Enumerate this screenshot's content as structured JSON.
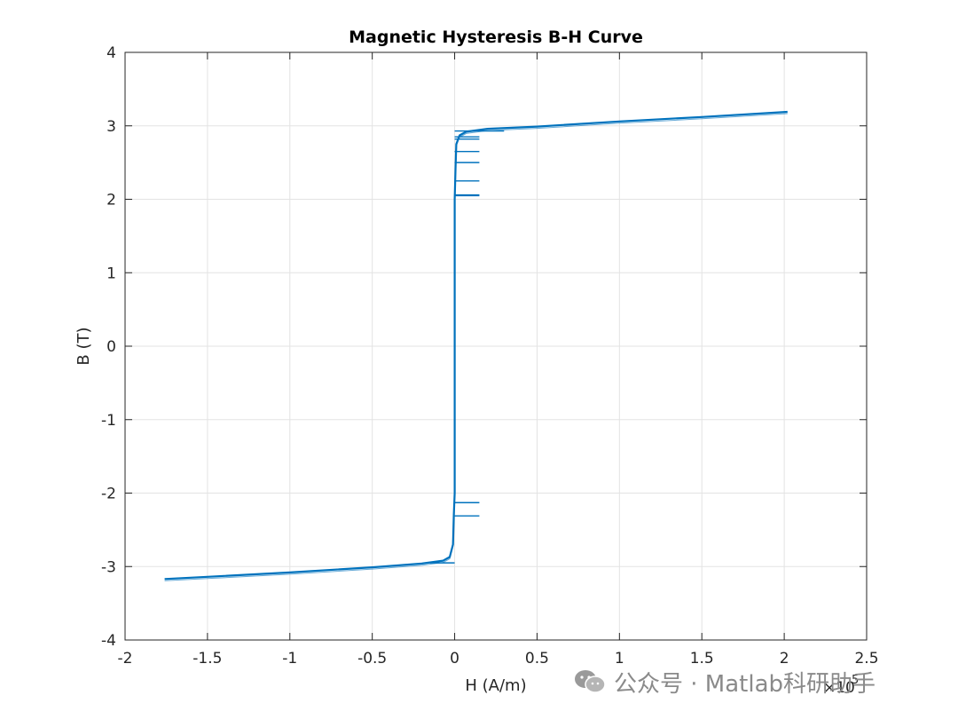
{
  "chart_data": {
    "type": "line",
    "title": "Magnetic Hysteresis B-H Curve",
    "xlabel": "H (A/m)",
    "ylabel": "B (T)",
    "x_exponent_label": "×10",
    "x_exponent_power": "5",
    "xlim": [
      -2,
      2.5
    ],
    "ylim": [
      -4,
      4
    ],
    "x_ticks": [
      -2,
      -1.5,
      -1,
      -0.5,
      0,
      0.5,
      1,
      1.5,
      2,
      2.5
    ],
    "x_tick_labels": [
      "-2",
      "-1.5",
      "-1",
      "-0.5",
      "0",
      "0.5",
      "1",
      "1.5",
      "2",
      "2.5"
    ],
    "y_ticks": [
      -4,
      -3,
      -2,
      -1,
      0,
      1,
      2,
      3,
      4
    ],
    "y_tick_labels": [
      "-4",
      "-3",
      "-2",
      "-1",
      "0",
      "1",
      "2",
      "3",
      "4"
    ],
    "grid": true,
    "series": [
      {
        "color": "#0072BD",
        "points": [
          [
            -1.76,
            -3.17
          ],
          [
            -1.5,
            -3.14
          ],
          [
            -1.0,
            -3.08
          ],
          [
            -0.5,
            -3.01
          ],
          [
            -0.2,
            -2.96
          ],
          [
            -0.07,
            -2.92
          ],
          [
            -0.03,
            -2.87
          ],
          [
            -0.01,
            -2.7
          ],
          [
            -0.005,
            -2.3
          ],
          [
            0.0,
            -2.0
          ],
          [
            0.0,
            0.0
          ],
          [
            0.0,
            2.0
          ],
          [
            0.005,
            2.4
          ],
          [
            0.01,
            2.75
          ],
          [
            0.03,
            2.87
          ],
          [
            0.07,
            2.92
          ],
          [
            0.2,
            2.96
          ],
          [
            0.5,
            2.99
          ],
          [
            1.0,
            3.06
          ],
          [
            1.5,
            3.12
          ],
          [
            2.02,
            3.19
          ]
        ],
        "segments": [
          {
            "x": [
              0.0,
              0.15
            ],
            "y": 2.85
          },
          {
            "x": [
              0.0,
              0.15
            ],
            "y": 2.82
          },
          {
            "x": [
              0.0,
              0.15
            ],
            "y": 2.65
          },
          {
            "x": [
              0.0,
              0.15
            ],
            "y": 2.5
          },
          {
            "x": [
              0.0,
              0.15
            ],
            "y": 2.25
          },
          {
            "x": [
              0.0,
              0.15
            ],
            "y": 2.06
          },
          {
            "x": [
              0.0,
              0.15
            ],
            "y": 2.05
          },
          {
            "x": [
              0.0,
              0.15
            ],
            "y": -2.13
          },
          {
            "x": [
              0.0,
              0.15
            ],
            "y": -2.31
          },
          {
            "x": [
              0.0,
              0.3
            ],
            "y": 2.93
          },
          {
            "x": [
              -0.15,
              0.0
            ],
            "y": -2.95
          }
        ]
      }
    ]
  },
  "watermark": {
    "icon": "wechat-icon",
    "text": "公众号 · Matlab科研助手"
  }
}
